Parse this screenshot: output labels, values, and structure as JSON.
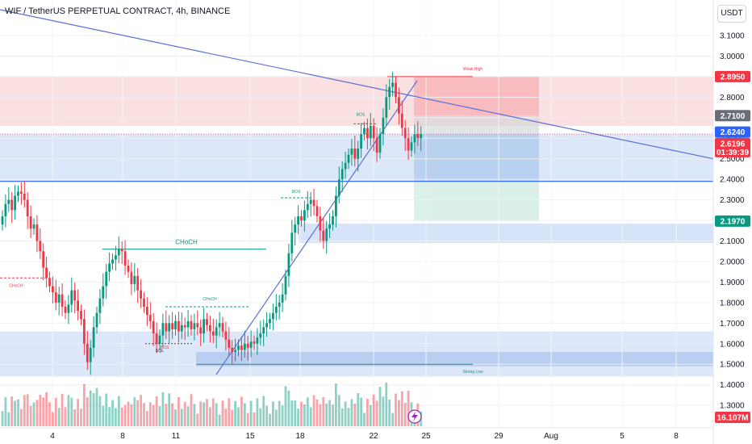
{
  "header": {
    "title": "WIF / TetherUS PERPETUAL CONTRACT, 4h, BINANCE",
    "currency": "USDT"
  },
  "colors": {
    "up": "#089981",
    "down": "#f23645",
    "trend": "#5b6fd6",
    "zone_red": "#f7c6c9",
    "zone_blue": "#c5d7f5",
    "tp_green": "#d6eee6"
  },
  "chart_data": {
    "type": "candlestick",
    "timeframe": "4h",
    "ylim": [
      1.25,
      3.19
    ],
    "y_ticks": [
      "3.1000",
      "3.0000",
      "2.9000",
      "2.8000",
      "2.7000",
      "2.6000",
      "2.5000",
      "2.4000",
      "2.3000",
      "2.2000",
      "2.1000",
      "2.0000",
      "1.9000",
      "1.8000",
      "1.7000",
      "1.6000",
      "1.5000",
      "1.4000",
      "1.3000"
    ],
    "x_ticks": [
      "4",
      "8",
      "11",
      "15",
      "18",
      "22",
      "25",
      "29",
      "Aug",
      "5",
      "8"
    ],
    "price_tags": [
      {
        "label": "2.8950",
        "color": "#f23645"
      },
      {
        "label": "2.7100",
        "color": "#6a6d78"
      },
      {
        "label": "2.6240",
        "color": "#2962ff"
      },
      {
        "label": "2.6196",
        "sub": "01:39:39",
        "color": "#f23645"
      },
      {
        "label": "2.1970",
        "color": "#089981"
      }
    ],
    "volume_tag": "16.107M",
    "annotations": {
      "choch_big": "CHoCH",
      "choch_left": "CHoCH",
      "choch_small": "CHoCH",
      "bos_top": "BOS",
      "bos_mid": "BOS",
      "bos_low": "BOS",
      "eql": "EQL",
      "weak_high": "Weak High",
      "strong_low": "Strong Low"
    },
    "close_series": [
      2.22,
      2.28,
      2.3,
      2.25,
      2.32,
      2.34,
      2.33,
      2.3,
      2.22,
      2.16,
      2.18,
      2.1,
      2.05,
      1.97,
      1.92,
      1.88,
      1.85,
      1.8,
      1.84,
      1.78,
      1.75,
      1.79,
      1.86,
      1.81,
      1.76,
      1.72,
      1.6,
      1.51,
      1.58,
      1.68,
      1.75,
      1.82,
      1.88,
      1.95,
      1.99,
      2.01,
      2.03,
      2.06,
      2.05,
      1.98,
      1.95,
      1.89,
      1.93,
      1.86,
      1.82,
      1.78,
      1.74,
      1.71,
      1.65,
      1.6,
      1.64,
      1.7,
      1.66,
      1.7,
      1.67,
      1.71,
      1.66,
      1.69,
      1.68,
      1.71,
      1.67,
      1.7,
      1.68,
      1.65,
      1.72,
      1.69,
      1.66,
      1.64,
      1.68,
      1.7,
      1.66,
      1.62,
      1.58,
      1.56,
      1.57,
      1.59,
      1.57,
      1.6,
      1.58,
      1.61,
      1.6,
      1.63,
      1.65,
      1.68,
      1.7,
      1.72,
      1.75,
      1.78,
      1.8,
      1.84,
      1.93,
      2.04,
      2.14,
      2.18,
      2.22,
      2.2,
      2.25,
      2.28,
      2.3,
      2.27,
      2.22,
      2.15,
      2.1,
      2.16,
      2.18,
      2.22,
      2.32,
      2.4,
      2.45,
      2.48,
      2.52,
      2.55,
      2.5,
      2.55,
      2.62,
      2.65,
      2.6,
      2.66,
      2.6,
      2.53,
      2.62,
      2.7,
      2.8,
      2.85,
      2.87,
      2.8,
      2.72,
      2.65,
      2.6,
      2.54,
      2.58,
      2.62,
      2.6,
      2.62
    ]
  }
}
